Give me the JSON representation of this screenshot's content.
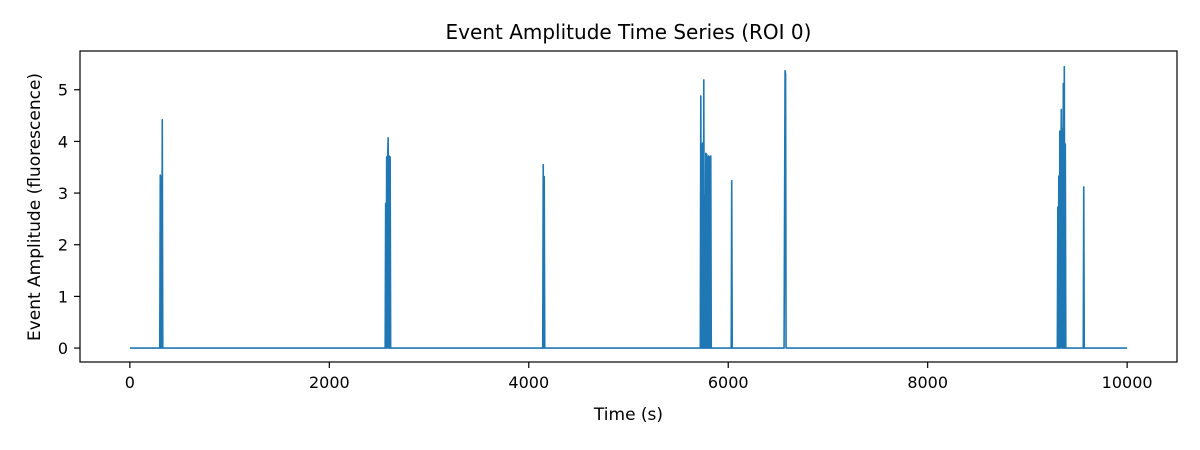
{
  "chart_data": {
    "type": "line",
    "title": "Event Amplitude Time Series (ROI 0)",
    "xlabel": "Time (s)",
    "ylabel": "Event Amplitude (fluorescence)",
    "xlim": [
      -500,
      10500
    ],
    "ylim": [
      -0.27,
      5.75
    ],
    "xticks": [
      0,
      2000,
      4000,
      6000,
      8000,
      10000
    ],
    "yticks": [
      0,
      1,
      2,
      3,
      4,
      5
    ],
    "grid": false,
    "series": [
      {
        "color": "#1f77b4",
        "x": [
          0,
          300,
          305,
          310,
          315,
          320,
          325,
          330,
          335,
          340,
          2560,
          2565,
          2570,
          2575,
          2580,
          2585,
          2590,
          2595,
          2600,
          2605,
          2610,
          2615,
          2620,
          4140,
          4145,
          4150,
          4155,
          4160,
          4165,
          4170,
          5720,
          5725,
          5730,
          5735,
          5740,
          5745,
          5750,
          5755,
          5760,
          5765,
          5770,
          5775,
          5780,
          5785,
          5790,
          5795,
          5800,
          5805,
          5810,
          5815,
          5820,
          5825,
          5830,
          5835,
          5840,
          5845,
          5850,
          5855,
          5860,
          6030,
          6035,
          6040,
          6045,
          6050,
          6560,
          6570,
          6575,
          6580,
          6590,
          9300,
          9305,
          9310,
          9315,
          9320,
          9325,
          9330,
          9335,
          9340,
          9345,
          9350,
          9355,
          9360,
          9365,
          9370,
          9375,
          9380,
          9385,
          9390,
          9395,
          9400,
          9405,
          9410,
          9415,
          9420,
          9425,
          9430,
          9435,
          9440,
          9445,
          9450,
          9455,
          9460,
          9465,
          9470,
          9475,
          9480,
          9485,
          9490,
          9495,
          9500,
          9560,
          9565,
          9570,
          9575,
          9580,
          10000
        ],
        "y": [
          0,
          0,
          3.35,
          0,
          3.32,
          0,
          4.42,
          0,
          0,
          0,
          0,
          2.8,
          0,
          3.7,
          0,
          3.72,
          4.07,
          0,
          3.72,
          0,
          3.7,
          0,
          0,
          0,
          3.55,
          0,
          3.32,
          0,
          0,
          0,
          0,
          4.88,
          0,
          3.95,
          0,
          3.97,
          0,
          5.19,
          0,
          2.95,
          0,
          3.77,
          0,
          3.75,
          0,
          3.7,
          0,
          3.72,
          0,
          3.7,
          0,
          3.72,
          0,
          0,
          0,
          0,
          0,
          0,
          0,
          0,
          3.24,
          0,
          0,
          0,
          0,
          5.37,
          5.3,
          0,
          0,
          0,
          2.73,
          0,
          3.33,
          0,
          4.2,
          0,
          3.3,
          4.62,
          0,
          4.25,
          0,
          5.12,
          0,
          5.45,
          0,
          3.95,
          0,
          0,
          0,
          0,
          0,
          0,
          0,
          0,
          0,
          0,
          0,
          0,
          0,
          0,
          0,
          0,
          0,
          0,
          0,
          0,
          0,
          0,
          0,
          0,
          0,
          3.12,
          0,
          0,
          0,
          0
        ]
      }
    ]
  }
}
